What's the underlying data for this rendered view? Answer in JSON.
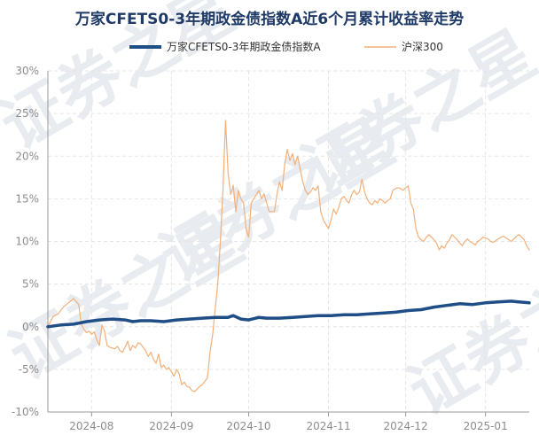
{
  "chart_data": {
    "type": "line",
    "title": "万家CFETS0-3年期政金债指数A近6个月累计收益率走势",
    "legend_placement": "top",
    "grid": true,
    "watermark": "证券之星",
    "ylim": [
      -10,
      30
    ],
    "yticks": [
      "30%",
      "25%",
      "20%",
      "15%",
      "10%",
      "5%",
      "0%",
      "-5%",
      "-10%"
    ],
    "ytick_values": [
      30,
      25,
      20,
      15,
      10,
      5,
      0,
      -5,
      -10
    ],
    "xticks": [
      "2024-08",
      "2024-09",
      "2024-10",
      "2024-11",
      "2024-12",
      "2025-01"
    ],
    "xtick_positions": [
      17,
      48,
      78,
      109,
      139,
      170
    ],
    "xlim": [
      0,
      187
    ],
    "series": [
      {
        "name": "万家CFETS0-3年期政金债指数A",
        "color": "#1f4e87",
        "x": [
          0,
          5,
          10,
          15,
          20,
          25,
          30,
          33,
          36,
          40,
          45,
          50,
          55,
          60,
          65,
          70,
          72,
          75,
          78,
          82,
          85,
          90,
          95,
          100,
          105,
          110,
          115,
          120,
          125,
          130,
          135,
          140,
          145,
          150,
          155,
          160,
          165,
          170,
          175,
          180,
          183,
          187
        ],
        "values": [
          0.0,
          0.2,
          0.3,
          0.6,
          0.8,
          0.9,
          0.8,
          0.6,
          0.7,
          0.7,
          0.6,
          0.8,
          0.9,
          1.0,
          1.1,
          1.1,
          1.3,
          0.9,
          0.8,
          1.1,
          1.0,
          1.0,
          1.1,
          1.2,
          1.3,
          1.3,
          1.4,
          1.4,
          1.5,
          1.6,
          1.7,
          1.9,
          2.0,
          2.3,
          2.5,
          2.7,
          2.6,
          2.8,
          2.9,
          3.0,
          2.9,
          2.8
        ]
      },
      {
        "name": "沪深300",
        "color": "#f2b07a",
        "x": [
          0,
          2,
          4,
          6,
          8,
          10,
          12,
          13,
          14,
          15,
          16,
          17,
          18,
          19,
          20,
          21,
          22,
          23,
          24,
          25,
          26,
          27,
          28,
          29,
          30,
          31,
          32,
          33,
          34,
          35,
          36,
          37,
          38,
          39,
          40,
          41,
          42,
          43,
          44,
          45,
          46,
          47,
          48,
          49,
          50,
          51,
          52,
          53,
          54,
          55,
          56,
          57,
          58,
          59,
          60,
          61,
          62,
          63,
          64,
          65,
          66,
          67,
          68,
          69,
          70,
          71,
          72,
          73,
          74,
          75,
          76,
          77,
          78,
          79,
          80,
          81,
          82,
          83,
          84,
          85,
          86,
          87,
          88,
          89,
          90,
          91,
          92,
          93,
          94,
          95,
          96,
          97,
          98,
          99,
          100,
          101,
          102,
          103,
          104,
          105,
          106,
          107,
          108,
          109,
          110,
          111,
          112,
          113,
          114,
          115,
          116,
          117,
          118,
          119,
          120,
          121,
          122,
          123,
          124,
          125,
          126,
          127,
          128,
          129,
          130,
          131,
          132,
          133,
          134,
          135,
          136,
          137,
          138,
          139,
          140,
          141,
          142,
          143,
          144,
          145,
          146,
          147,
          148,
          149,
          150,
          151,
          152,
          153,
          154,
          155,
          156,
          157,
          158,
          159,
          160,
          161,
          162,
          163,
          164,
          165,
          166,
          167,
          168,
          169,
          170,
          171,
          172,
          173,
          174,
          175,
          176,
          177,
          178,
          179,
          180,
          181,
          182,
          183,
          184,
          185,
          186,
          187
        ],
        "values": [
          0.0,
          1.2,
          1.5,
          2.3,
          2.8,
          3.3,
          2.6,
          0.3,
          -0.3,
          -0.7,
          -0.5,
          -0.9,
          -0.6,
          -1.5,
          -2.2,
          0.2,
          -0.5,
          -2.2,
          -2.4,
          -2.5,
          -2.6,
          -2.3,
          -2.8,
          -3.0,
          -2.4,
          -1.7,
          -2.8,
          -2.2,
          -2.5,
          -1.9,
          -2.0,
          -2.4,
          -2.8,
          -3.5,
          -3.0,
          -3.8,
          -4.3,
          -3.2,
          -4.8,
          -4.5,
          -5.0,
          -4.8,
          -5.3,
          -5.8,
          -5.0,
          -5.5,
          -6.8,
          -6.5,
          -7.0,
          -7.1,
          -7.5,
          -7.6,
          -7.3,
          -7.0,
          -6.8,
          -6.4,
          -6.0,
          -3.0,
          -1.0,
          2.0,
          5.0,
          10.0,
          16.0,
          24.2,
          18.0,
          15.5,
          16.6,
          13.5,
          16.0,
          15.0,
          14.5,
          11.5,
          10.5,
          14.5,
          15.0,
          15.5,
          16.0,
          15.0,
          15.6,
          14.5,
          13.5,
          13.5,
          13.5,
          15.5,
          17.0,
          16.0,
          19.0,
          20.8,
          19.5,
          20.3,
          19.0,
          20.0,
          18.5,
          17.0,
          16.0,
          15.5,
          15.8,
          16.3,
          16.0,
          16.5,
          13.5,
          12.5,
          12.0,
          11.5,
          12.5,
          13.8,
          13.2,
          14.0,
          15.0,
          15.3,
          14.8,
          14.5,
          15.5,
          16.0,
          15.5,
          15.8,
          17.3,
          15.8,
          15.0,
          14.5,
          14.3,
          14.8,
          14.5,
          15.0,
          14.8,
          14.5,
          14.8,
          15.0,
          16.0,
          16.2,
          16.3,
          16.2,
          16.0,
          16.3,
          16.5,
          14.5,
          13.8,
          11.5,
          10.5,
          10.2,
          10.0,
          10.5,
          10.8,
          10.5,
          10.2,
          9.8,
          9.0,
          9.5,
          9.2,
          9.8,
          10.2,
          10.8,
          10.5,
          10.2,
          9.8,
          9.5,
          10.0,
          10.3,
          10.0,
          9.8,
          9.6,
          10.0,
          10.2,
          10.5,
          10.4,
          10.3,
          10.0,
          9.9,
          10.1,
          10.3,
          10.5,
          10.6,
          10.4,
          10.2,
          10.0,
          10.3,
          10.6,
          10.8,
          10.5,
          10.2,
          9.5,
          9.0
        ]
      }
    ]
  }
}
